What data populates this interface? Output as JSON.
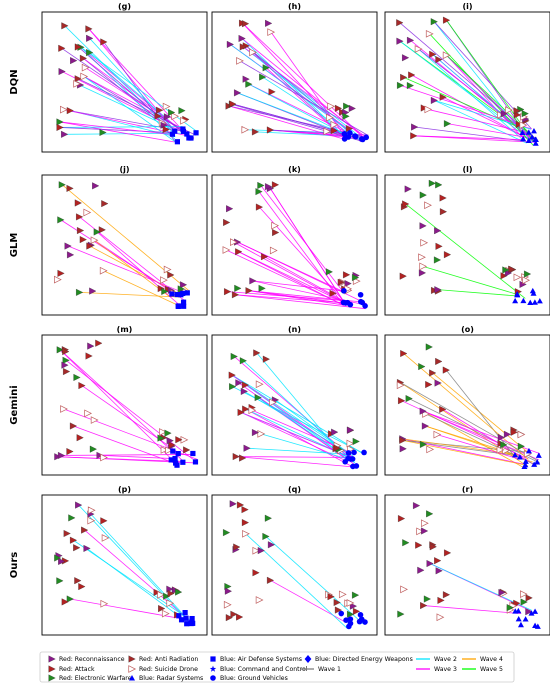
{
  "chart_data": {
    "type": "scatter",
    "description_rows": [
      "DQN",
      "GLM",
      "Gemini",
      "Ours"
    ],
    "panels": [
      {
        "label": "(g)",
        "row": "DQN",
        "density": 28,
        "blue_style": "squares",
        "waves": [
          "#ff00ff",
          "#8a2be2",
          "#00e5ff"
        ]
      },
      {
        "label": "(h)",
        "row": "DQN",
        "density": 30,
        "blue_style": "circles",
        "waves": [
          "#ff00ff",
          "#8a2be2",
          "#00e5ff"
        ]
      },
      {
        "label": "(i)",
        "row": "DQN",
        "density": 28,
        "blue_style": "triangles",
        "waves": [
          "#ff00ff",
          "#8a2be2",
          "#00e5ff",
          "#00ff00"
        ]
      },
      {
        "label": "(j)",
        "row": "GLM",
        "density": 10,
        "blue_style": "squares",
        "waves": [
          "#ffa500",
          "#ff00ff"
        ]
      },
      {
        "label": "(k)",
        "row": "GLM",
        "density": 20,
        "blue_style": "circles",
        "waves": [
          "#ff00ff"
        ]
      },
      {
        "label": "(l)",
        "row": "GLM",
        "density": 3,
        "blue_style": "triangles",
        "waves": [
          "#00e5ff",
          "#ffa500",
          "#00ff00"
        ]
      },
      {
        "label": "(m)",
        "row": "Gemini",
        "density": 10,
        "blue_style": "squares",
        "waves": [
          "#ff00ff"
        ]
      },
      {
        "label": "(n)",
        "row": "Gemini",
        "density": 24,
        "blue_style": "circles",
        "waves": [
          "#ff00ff",
          "#00e5ff"
        ]
      },
      {
        "label": "(o)",
        "row": "Gemini",
        "density": 20,
        "blue_style": "triangles",
        "waves": [
          "#808080",
          "#ff00ff",
          "#ffa500"
        ]
      },
      {
        "label": "(p)",
        "row": "Ours",
        "density": 6,
        "blue_style": "squares",
        "waves": [
          "#00e5ff",
          "#ff00ff"
        ]
      },
      {
        "label": "(q)",
        "row": "Ours",
        "density": 3,
        "blue_style": "circles",
        "waves": [
          "#ff00ff",
          "#00e5ff"
        ]
      },
      {
        "label": "(r)",
        "row": "Ours",
        "density": 3,
        "blue_style": "triangles",
        "waves": [
          "#ff00ff",
          "#00e5ff"
        ]
      }
    ],
    "legend": [
      {
        "label": "Red: Reconnaissance",
        "marker": "tri-right",
        "color": "#8b1a8b"
      },
      {
        "label": "Red: Anti Radiation",
        "marker": "tri-right",
        "color": "#a52a2a"
      },
      {
        "label": "Blue: Air Defense Systems",
        "marker": "square",
        "color": "#0000ff"
      },
      {
        "label": "Blue: Directed Energy Weapons",
        "marker": "diamond",
        "color": "#0000ff"
      },
      {
        "label": "Wave 2",
        "marker": "line",
        "color": "#00e5ff"
      },
      {
        "label": "Wave 4",
        "marker": "line",
        "color": "#ffa500"
      },
      {
        "label": "Red: Attack",
        "marker": "tri-right",
        "color": "#b22222"
      },
      {
        "label": "Red: Suicide Drone",
        "marker": "tri-right-open",
        "color": "#f08080"
      },
      {
        "label": "Blue: Command and Control",
        "marker": "star",
        "color": "#0000ff"
      },
      {
        "label": "Wave 1",
        "marker": "line",
        "color": "#808080"
      },
      {
        "label": "Wave 3",
        "marker": "line",
        "color": "#ff00ff"
      },
      {
        "label": "Wave 5",
        "marker": "line",
        "color": "#00ff00"
      },
      {
        "label": "Red: Electronic Warfare",
        "marker": "tri-right",
        "color": "#228b22"
      },
      {
        "label": "Blue: Radar Systems",
        "marker": "triangle-up",
        "color": "#0000ff"
      },
      {
        "label": "Blue: Ground Vehicles",
        "marker": "circle",
        "color": "#0000ff"
      }
    ]
  }
}
